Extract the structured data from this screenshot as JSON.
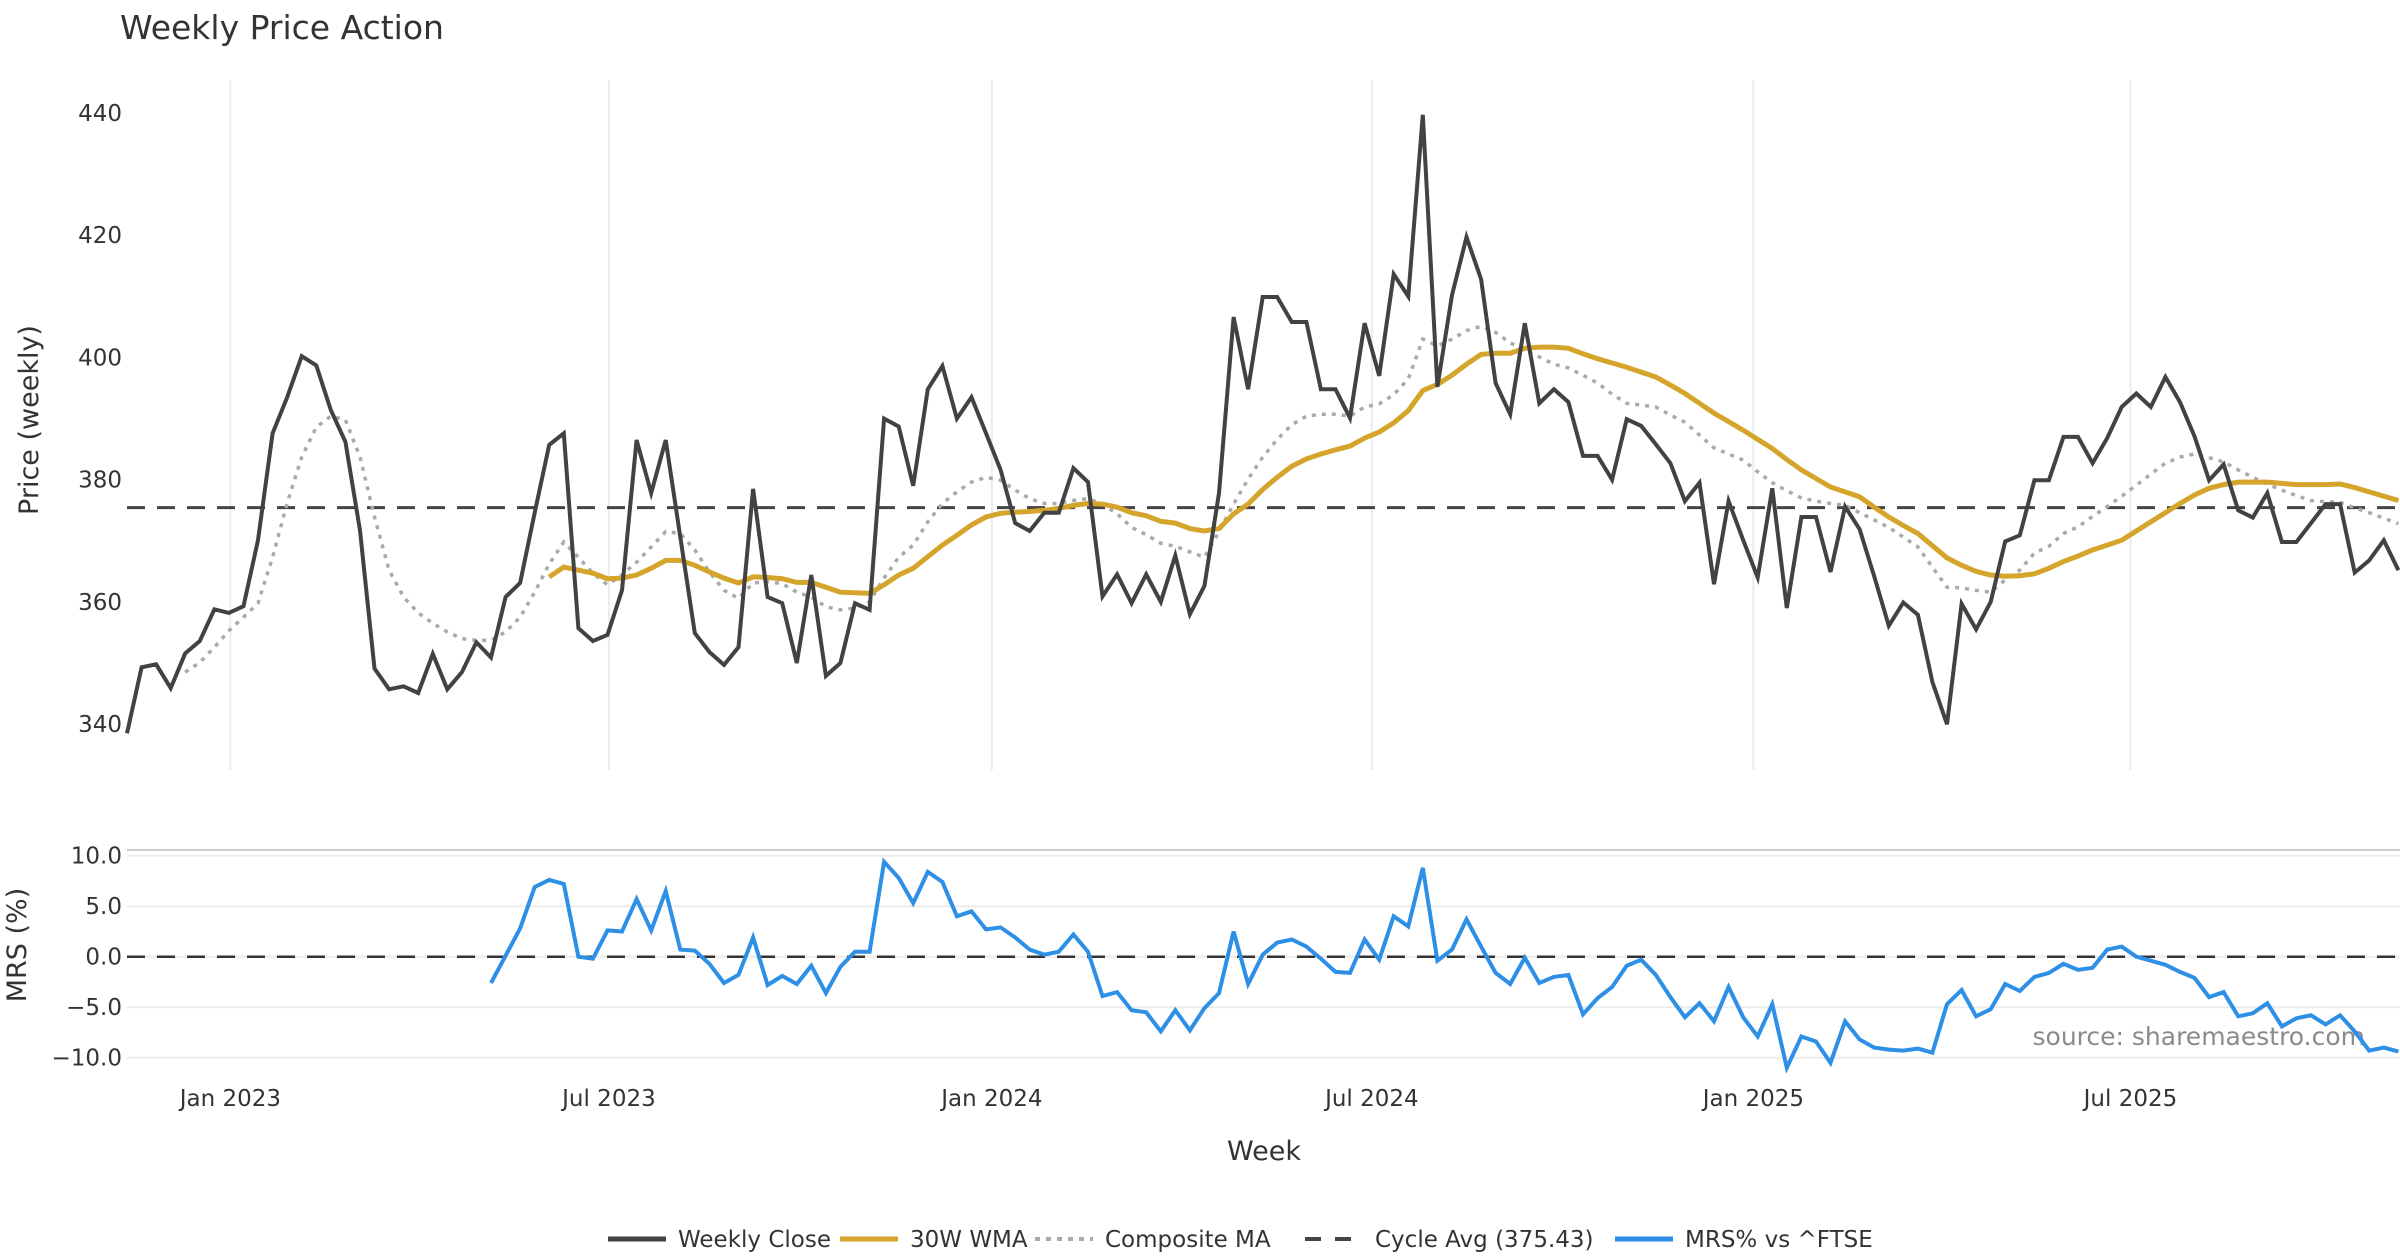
{
  "chart_data": [
    {
      "panel": "price",
      "type": "line",
      "title": "Weekly Price Action",
      "xlabel": "Week",
      "ylabel": "Price (weekly)",
      "ylim": [
        332.5,
        445.4
      ],
      "yticks": [
        340,
        360,
        380,
        400,
        420,
        440
      ],
      "xlim": [
        1,
        157
      ],
      "x_ticks": [
        {
          "label": "Jan 2023",
          "week": 8.1
        },
        {
          "label": "Jul 2023",
          "week": 34.1
        },
        {
          "label": "Jan 2024",
          "week": 60.4
        },
        {
          "label": "Jul 2024",
          "week": 86.5
        },
        {
          "label": "Jan 2025",
          "week": 112.7
        },
        {
          "label": "Jul 2025",
          "week": 138.6
        }
      ],
      "grid": "vertical",
      "series": [
        {
          "name": "Weekly Close",
          "color": "#424242",
          "style": "solid",
          "start_week": 1,
          "values": [
            338.5,
            349.3,
            349.8,
            345.9,
            351.6,
            353.6,
            358.8,
            358.2,
            359.3,
            370.1,
            387.6,
            393.5,
            400.2,
            398.7,
            391.4,
            386.2,
            371.7,
            349.1,
            345.7,
            346.2,
            345.1,
            351.5,
            345.7,
            348.5,
            353.4,
            350.9,
            360.8,
            363.1,
            374.6,
            385.7,
            387.6,
            355.7,
            353.6,
            354.6,
            361.9,
            386.5,
            377.8,
            386.5,
            370.6,
            354.9,
            351.8,
            349.7,
            352.6,
            378.5,
            360.8,
            359.8,
            350.0,
            364.4,
            347.9,
            350.0,
            359.8,
            358.7,
            390.0,
            388.7,
            379.0,
            394.8,
            398.6,
            390.0,
            393.5,
            387.6,
            381.6,
            372.9,
            371.6,
            374.6,
            374.6,
            381.9,
            379.6,
            360.9,
            364.5,
            359.8,
            364.5,
            360.0,
            367.6,
            358.0,
            362.6,
            377.8,
            406.6,
            394.8,
            409.9,
            409.9,
            405.8,
            405.8,
            394.8,
            394.8,
            390.1,
            405.6,
            397.0,
            413.6,
            410.0,
            439.7,
            395.2,
            410.2,
            419.7,
            412.8,
            395.8,
            390.7,
            405.6,
            392.5,
            394.8,
            392.7,
            383.9,
            383.9,
            380.0,
            389.9,
            388.8,
            385.8,
            382.7,
            376.5,
            379.5,
            362.9,
            376.5,
            370.1,
            364.0,
            378.6,
            359.0,
            373.9,
            373.9,
            364.9,
            375.6,
            371.9,
            364.2,
            356.1,
            359.9,
            357.9,
            346.9,
            340.0,
            359.7,
            355.5,
            360.0,
            369.9,
            370.9,
            379.9,
            379.9,
            387.0,
            387.0,
            382.7,
            386.8,
            391.9,
            394.1,
            391.9,
            396.8,
            392.7,
            387.1,
            379.9,
            382.5,
            375.0,
            373.8,
            377.8,
            369.8,
            369.8,
            372.9,
            376.0,
            376.0,
            364.8,
            366.8,
            370.1,
            365.2
          ]
        },
        {
          "name": "30W WMA",
          "color": "#D4A42B",
          "style": "solid",
          "start_week": 30,
          "values": [
            364.1,
            365.7,
            365.2,
            364.7,
            363.8,
            363.9,
            364.4,
            365.5,
            366.8,
            366.8,
            366.0,
            364.9,
            363.9,
            363.1,
            364.1,
            364.0,
            363.8,
            363.2,
            363.2,
            362.4,
            361.6,
            361.5,
            361.4,
            362.8,
            364.4,
            365.5,
            367.4,
            369.3,
            370.9,
            372.6,
            373.9,
            374.5,
            374.7,
            374.8,
            375.0,
            375.3,
            375.8,
            376.1,
            376.0,
            375.5,
            374.6,
            374.1,
            373.2,
            372.9,
            372.0,
            371.6,
            372.0,
            374.4,
            376.0,
            378.4,
            380.4,
            382.2,
            383.4,
            384.2,
            384.9,
            385.5,
            386.8,
            387.8,
            389.3,
            391.3,
            394.6,
            395.6,
            397.1,
            398.9,
            400.5,
            400.7,
            400.7,
            401.5,
            401.7,
            401.7,
            401.5,
            400.6,
            399.8,
            399.1,
            398.4,
            397.6,
            396.8,
            395.5,
            394.1,
            392.5,
            390.9,
            389.5,
            388.1,
            386.6,
            385.1,
            383.3,
            381.6,
            380.2,
            378.8,
            378.0,
            377.2,
            375.5,
            373.9,
            372.5,
            371.2,
            369.2,
            367.2,
            366.0,
            365.0,
            364.4,
            364.2,
            364.3,
            364.6,
            365.5,
            366.6,
            367.5,
            368.5,
            369.3,
            370.1,
            371.6,
            373.1,
            374.6,
            376.1,
            377.5,
            378.6,
            379.2,
            379.6,
            379.6,
            379.6,
            379.4,
            379.2,
            379.2,
            379.2,
            379.3,
            378.7,
            378.0,
            377.3,
            376.6
          ]
        },
        {
          "name": "Composite MA",
          "color": "#AAAAAA",
          "style": "dotted",
          "start_week": 5,
          "values": [
            348.5,
            350.1,
            352.6,
            355.3,
            357.5,
            359.8,
            367.3,
            376.2,
            383.7,
            388.6,
            390.4,
            389.8,
            383.7,
            373.9,
            365.2,
            360.8,
            358.2,
            356.5,
            355.1,
            354.0,
            353.7,
            353.7,
            355.1,
            357.5,
            361.6,
            366.2,
            369.8,
            367.3,
            364.7,
            362.8,
            364.4,
            366.5,
            369.0,
            371.5,
            371.2,
            368.5,
            364.9,
            361.9,
            360.6,
            363.1,
            363.3,
            363.0,
            361.6,
            360.8,
            359.2,
            358.7,
            359.0,
            360.0,
            363.9,
            367.3,
            369.3,
            373.1,
            376.1,
            378.0,
            379.6,
            380.4,
            379.9,
            378.3,
            376.9,
            376.1,
            376.1,
            376.6,
            376.9,
            376.0,
            374.4,
            372.2,
            371.0,
            369.6,
            369.1,
            368.2,
            367.3,
            371.5,
            376.0,
            380.1,
            383.7,
            386.6,
            389.0,
            390.4,
            390.7,
            390.7,
            390.4,
            391.9,
            392.4,
            393.9,
            396.5,
            403.0,
            401.9,
            403.0,
            404.4,
            405.1,
            404.1,
            402.4,
            401.2,
            400.1,
            398.9,
            398.3,
            397.1,
            395.8,
            394.0,
            392.5,
            392.2,
            391.9,
            390.6,
            389.4,
            387.3,
            385.2,
            384.2,
            383.2,
            381.3,
            379.5,
            378.2,
            377.0,
            376.5,
            376.1,
            375.8,
            374.6,
            373.4,
            372.2,
            370.6,
            369.0,
            365.7,
            362.4,
            362.3,
            361.9,
            361.6,
            363.6,
            365.2,
            368.0,
            369.1,
            371.2,
            372.3,
            374.0,
            375.6,
            377.3,
            379.1,
            380.9,
            382.7,
            383.7,
            384.2,
            383.6,
            382.9,
            381.6,
            380.4,
            379.3,
            378.3,
            377.4,
            376.6,
            376.4,
            376.3,
            375.4,
            374.6,
            373.7,
            372.8
          ]
        },
        {
          "name": "Cycle Avg (375.43)",
          "color": "#444444",
          "style": "dashed",
          "value": 375.43
        }
      ]
    },
    {
      "panel": "mrs",
      "type": "line",
      "ylabel": "MRS (%)",
      "ylim": [
        -11.8,
        10.0
      ],
      "yticks": [
        10.0,
        5.0,
        0.0,
        -5.0,
        -10.0
      ],
      "ytick_labels": [
        "10.0",
        "5.0",
        "0.0",
        "−5.0",
        "−10.0"
      ],
      "grid": "horizontal",
      "zero_line": {
        "value": 0.0,
        "style": "dashed",
        "color": "#333333"
      },
      "series": [
        {
          "name": "MRS% vs ^FTSE",
          "color": "#2E8FE6",
          "style": "solid",
          "start_week": 26,
          "values": [
            -2.6,
            0.1,
            2.8,
            6.9,
            7.6,
            7.2,
            0.0,
            -0.2,
            2.6,
            2.5,
            5.7,
            2.6,
            6.5,
            0.7,
            0.6,
            -0.7,
            -2.6,
            -1.8,
            1.9,
            -2.8,
            -1.9,
            -2.7,
            -0.9,
            -3.6,
            -1.0,
            0.5,
            0.5,
            9.4,
            7.8,
            5.3,
            8.4,
            7.4,
            4.0,
            4.5,
            2.7,
            2.9,
            1.9,
            0.7,
            0.2,
            0.5,
            2.2,
            0.5,
            -3.9,
            -3.5,
            -5.3,
            -5.5,
            -7.4,
            -5.3,
            -7.3,
            -5.1,
            -3.6,
            2.5,
            -2.7,
            0.2,
            1.4,
            1.7,
            1.0,
            -0.2,
            -1.5,
            -1.6,
            1.7,
            -0.3,
            4.0,
            3.0,
            8.8,
            -0.4,
            0.7,
            3.7,
            1.0,
            -1.6,
            -2.7,
            -0.1,
            -2.6,
            -2.0,
            -1.8,
            -5.7,
            -4.1,
            -3.0,
            -0.9,
            -0.3,
            -1.8,
            -4.0,
            -6.0,
            -4.6,
            -6.4,
            -3.0,
            -6.0,
            -7.9,
            -4.7,
            -11.0,
            -7.9,
            -8.4,
            -10.5,
            -6.4,
            -8.2,
            -9.0,
            -9.2,
            -9.3,
            -9.1,
            -9.5,
            -4.7,
            -3.3,
            -5.9,
            -5.2,
            -2.7,
            -3.4,
            -2.0,
            -1.6,
            -0.7,
            -1.3,
            -1.1,
            0.7,
            1.0,
            0.0,
            -0.4,
            -0.8,
            -1.5,
            -2.1,
            -4.0,
            -3.5,
            -5.9,
            -5.6,
            -4.6,
            -6.9,
            -6.1,
            -5.8,
            -6.7,
            -5.8,
            -7.4,
            -9.3,
            -9.0,
            -9.4
          ]
        }
      ],
      "annotation": "source: sharemaestro.com"
    }
  ],
  "legend": {
    "placement": "bottom-center",
    "items": [
      {
        "label": "Weekly Close",
        "color": "#424242",
        "style": "solid"
      },
      {
        "label": "30W WMA",
        "color": "#D4A42B",
        "style": "solid"
      },
      {
        "label": "Composite MA",
        "color": "#AAAAAA",
        "style": "dotted"
      },
      {
        "label": "Cycle Avg (375.43)",
        "color": "#444444",
        "style": "dashed"
      },
      {
        "label": "MRS% vs ^FTSE",
        "color": "#2E8FE6",
        "style": "solid"
      }
    ]
  }
}
